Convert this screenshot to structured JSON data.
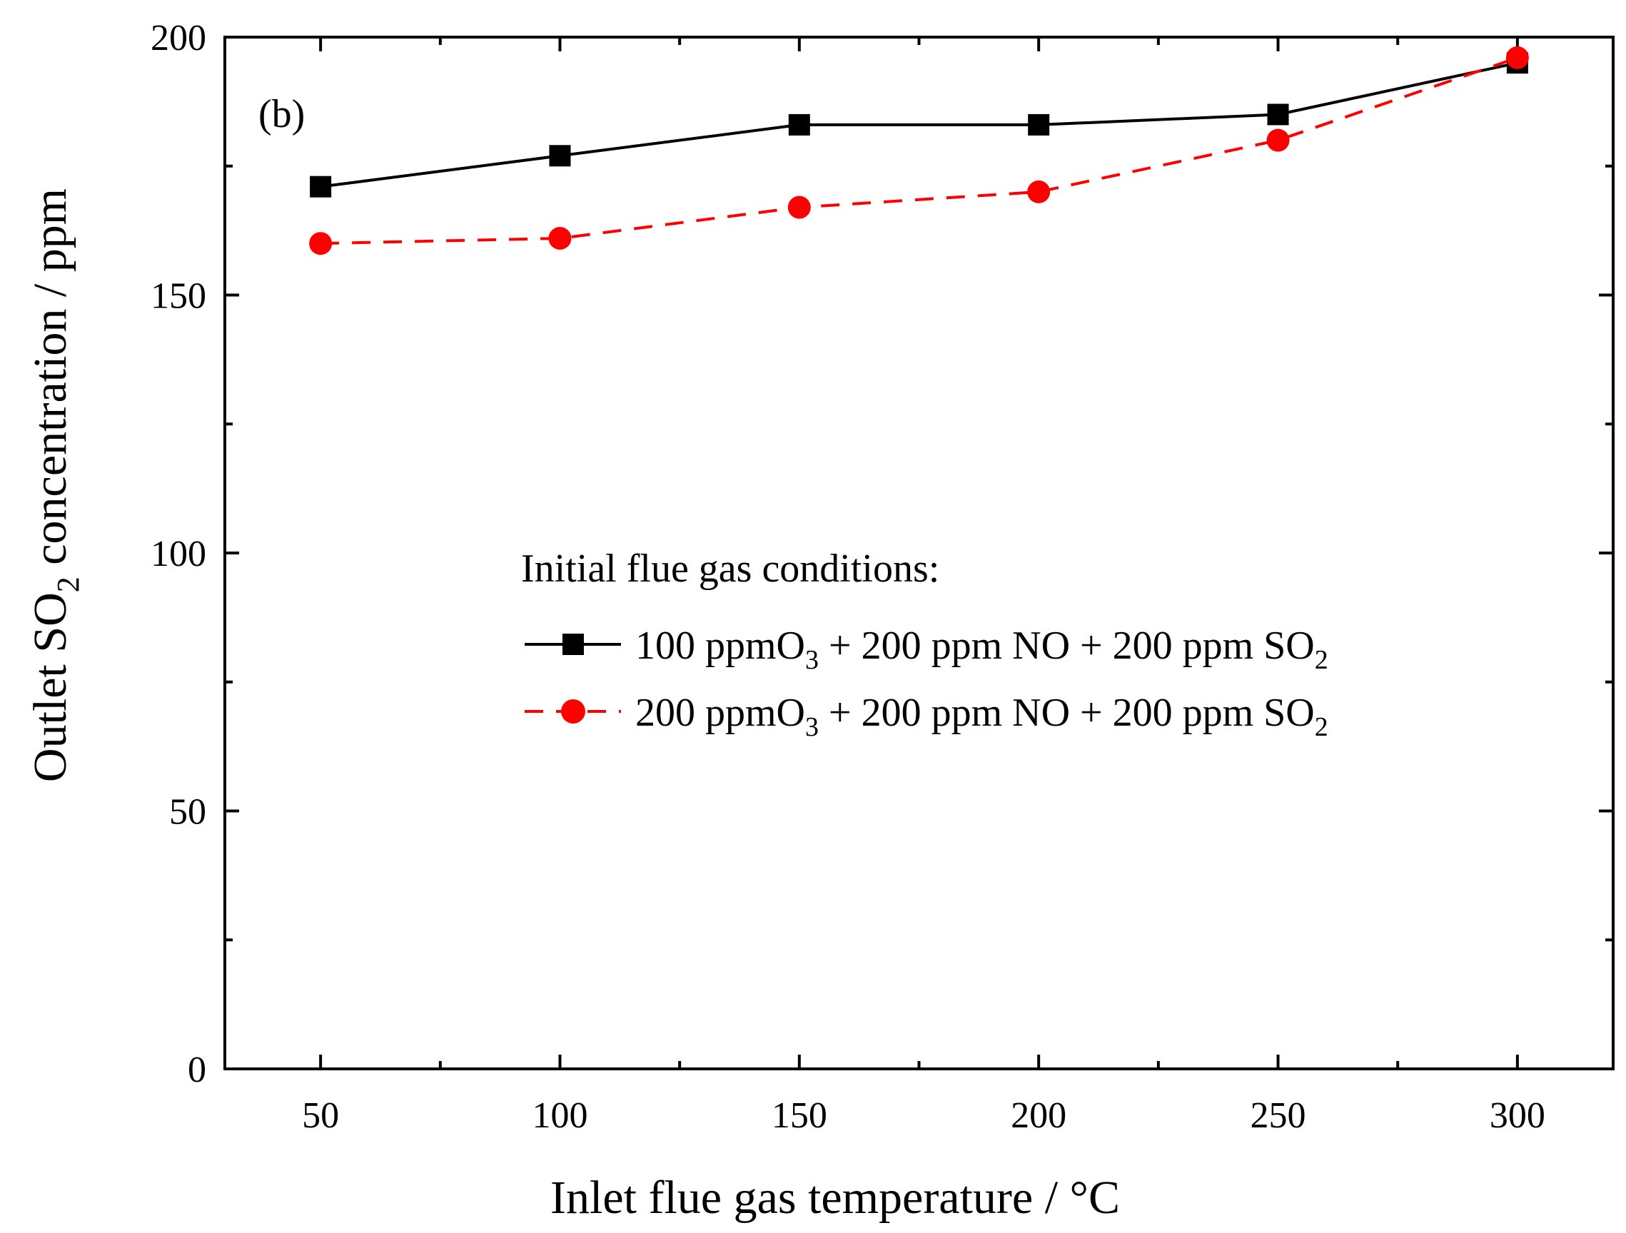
{
  "chart_data": {
    "type": "line",
    "panel_label": "(b)",
    "xlabel": "Inlet flue gas temperature / °C",
    "ylabel": {
      "prefix": "Outlet SO",
      "subscript": "2",
      "suffix": " concentration / ppm"
    },
    "xlim": [
      30,
      320
    ],
    "ylim": [
      0,
      200
    ],
    "x_ticks": [
      50,
      100,
      150,
      200,
      250,
      300
    ],
    "y_ticks": [
      0,
      50,
      100,
      150,
      200
    ],
    "x": [
      50,
      100,
      150,
      200,
      250,
      300
    ],
    "legend_title": "Initial flue gas conditions:",
    "legend_position": "center-right",
    "series": [
      {
        "name": "100 ppmO3 + 200 ppm NO + 200 ppm SO2",
        "label_parts": [
          "100 ppmO",
          "3",
          " + 200 ppm NO + 200 ppm SO",
          "2"
        ],
        "values": [
          171,
          177,
          183,
          183,
          185,
          195
        ],
        "color": "#000000",
        "marker": "square",
        "line_style": "solid"
      },
      {
        "name": "200 ppmO3 + 200 ppm NO + 200 ppm SO2",
        "label_parts": [
          "200 ppmO",
          "3",
          " + 200 ppm NO + 200 ppm SO",
          "2"
        ],
        "values": [
          160,
          161,
          167,
          170,
          180,
          196
        ],
        "color": "#ff0000",
        "marker": "circle",
        "line_style": "dashed"
      }
    ]
  }
}
